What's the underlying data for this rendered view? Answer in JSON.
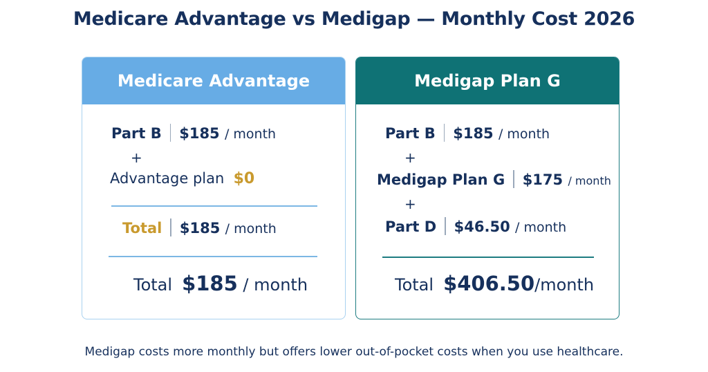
{
  "title": "Medicare Advantage vs Medigap — Monthly Cost 2026",
  "cards": {
    "advantage": {
      "header": "Medicare Advantage",
      "part_b": {
        "label": "Part B",
        "value": "$185",
        "unit": "/ month"
      },
      "plus1": "+",
      "plan": {
        "label": "Advantage plan",
        "value": "$0"
      },
      "subtotal": {
        "label": "Total",
        "value": "$185",
        "unit": "/ month"
      },
      "total": {
        "label": "Total",
        "value": "$185",
        "unit": "/ month"
      }
    },
    "medigap": {
      "header": "Medigap Plan G",
      "part_b": {
        "label": "Part B",
        "value": "$185",
        "unit": "/ month"
      },
      "plus1": "+",
      "plan_g": {
        "label": "Medigap Plan G",
        "value": "$175",
        "unit": "/ month"
      },
      "plus2": "+",
      "part_d": {
        "label": "Part D",
        "value": "$46.50",
        "unit": "/ month"
      },
      "total": {
        "label": "Total",
        "value": "$406.50",
        "unit": "/month"
      }
    }
  },
  "footnote": "Medigap costs more monthly but offers lower out-of-pocket costs when you use healthcare.",
  "colors": {
    "navy": "#16305c",
    "light_blue": "#67ace5",
    "teal": "#0f7275",
    "gold": "#c99a2e"
  }
}
